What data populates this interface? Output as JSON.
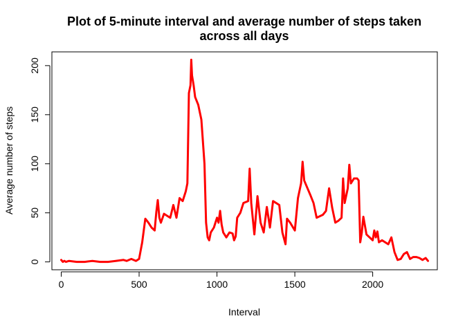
{
  "chart_data": {
    "type": "line",
    "title_lines": [
      "Plot of 5-minute interval and average number of steps taken",
      "across all days"
    ],
    "xlabel": "Interval",
    "ylabel": "Average number of steps",
    "xlim": [
      -60,
      2415
    ],
    "ylim": [
      -8,
      214
    ],
    "x_ticks": [
      0,
      500,
      1000,
      1500,
      2000
    ],
    "y_ticks": [
      0,
      50,
      100,
      150,
      200
    ],
    "line_color": "#ff0000",
    "grid": false,
    "series": [
      {
        "x": [
          0,
          10,
          20,
          30,
          50,
          100,
          150,
          200,
          250,
          300,
          350,
          400,
          420,
          450,
          480,
          500,
          520,
          540,
          560,
          580,
          600,
          610,
          620,
          630,
          640,
          660,
          680,
          700,
          720,
          740,
          760,
          780,
          800,
          810,
          820,
          830,
          835,
          840,
          850,
          860,
          880,
          900,
          920,
          930,
          940,
          950,
          960,
          980,
          1000,
          1010,
          1020,
          1030,
          1040,
          1060,
          1080,
          1100,
          1110,
          1120,
          1130,
          1150,
          1170,
          1200,
          1210,
          1220,
          1240,
          1260,
          1280,
          1300,
          1320,
          1340,
          1360,
          1400,
          1420,
          1440,
          1450,
          1470,
          1500,
          1520,
          1540,
          1550,
          1560,
          1600,
          1620,
          1640,
          1680,
          1700,
          1720,
          1740,
          1760,
          1780,
          1800,
          1810,
          1820,
          1840,
          1850,
          1860,
          1880,
          1900,
          1910,
          1920,
          1930,
          1940,
          1960,
          1980,
          2000,
          2010,
          2020,
          2030,
          2040,
          2060,
          2080,
          2100,
          2120,
          2140,
          2160,
          2180,
          2200,
          2220,
          2240,
          2260,
          2280,
          2300,
          2320,
          2340,
          2355
        ],
        "y": [
          2,
          0,
          1,
          0,
          1,
          0,
          0,
          1,
          0,
          0,
          1,
          2,
          1,
          3,
          1,
          3,
          20,
          44,
          40,
          35,
          32,
          50,
          63,
          45,
          40,
          49,
          47,
          45,
          58,
          45,
          65,
          62,
          72,
          80,
          172,
          180,
          206,
          190,
          180,
          168,
          160,
          145,
          100,
          40,
          25,
          22,
          30,
          35,
          45,
          40,
          52,
          38,
          30,
          25,
          30,
          29,
          22,
          26,
          45,
          50,
          60,
          62,
          95,
          60,
          28,
          67,
          40,
          30,
          56,
          35,
          62,
          58,
          30,
          18,
          44,
          40,
          32,
          65,
          80,
          102,
          83,
          68,
          60,
          45,
          48,
          52,
          75,
          55,
          40,
          42,
          45,
          85,
          60,
          75,
          99,
          80,
          85,
          85,
          83,
          20,
          30,
          46,
          28,
          25,
          22,
          32,
          25,
          31,
          20,
          22,
          20,
          18,
          25,
          10,
          2,
          3,
          8,
          10,
          3,
          5,
          5,
          4,
          2,
          4,
          1
        ]
      }
    ]
  }
}
